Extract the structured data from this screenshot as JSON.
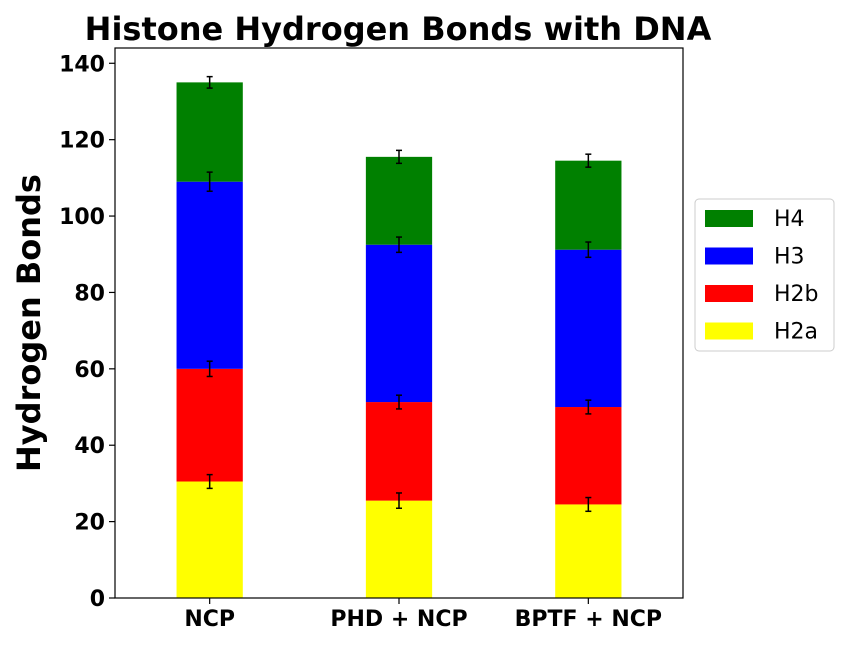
{
  "chart_data": {
    "type": "bar",
    "stacked": true,
    "title": "Histone Hydrogen Bonds with DNA",
    "xlabel": "",
    "ylabel": "Hydrogen Bonds",
    "categories": [
      "NCP",
      "PHD + NCP",
      "BPTF + NCP"
    ],
    "ylim": [
      0,
      144
    ],
    "yticks": [
      0,
      20,
      40,
      60,
      80,
      100,
      120,
      140
    ],
    "legend_position": "right",
    "series": [
      {
        "name": "H2a",
        "color": "#ffff00",
        "values": [
          30.5,
          25.5,
          24.5
        ],
        "errors": [
          1.8,
          2.0,
          1.8
        ]
      },
      {
        "name": "H2b",
        "color": "#ff0000",
        "values": [
          29.5,
          25.8,
          25.5
        ],
        "errors": [
          2.0,
          1.8,
          1.8
        ]
      },
      {
        "name": "H3",
        "color": "#0000ff",
        "values": [
          49.0,
          41.2,
          41.2
        ],
        "errors": [
          2.5,
          2.0,
          2.0
        ]
      },
      {
        "name": "H4",
        "color": "#008000",
        "values": [
          26.0,
          23.0,
          23.3
        ],
        "errors": [
          1.5,
          1.7,
          1.7
        ]
      }
    ],
    "legend_order": [
      "H4",
      "H3",
      "H2b",
      "H2a"
    ]
  }
}
